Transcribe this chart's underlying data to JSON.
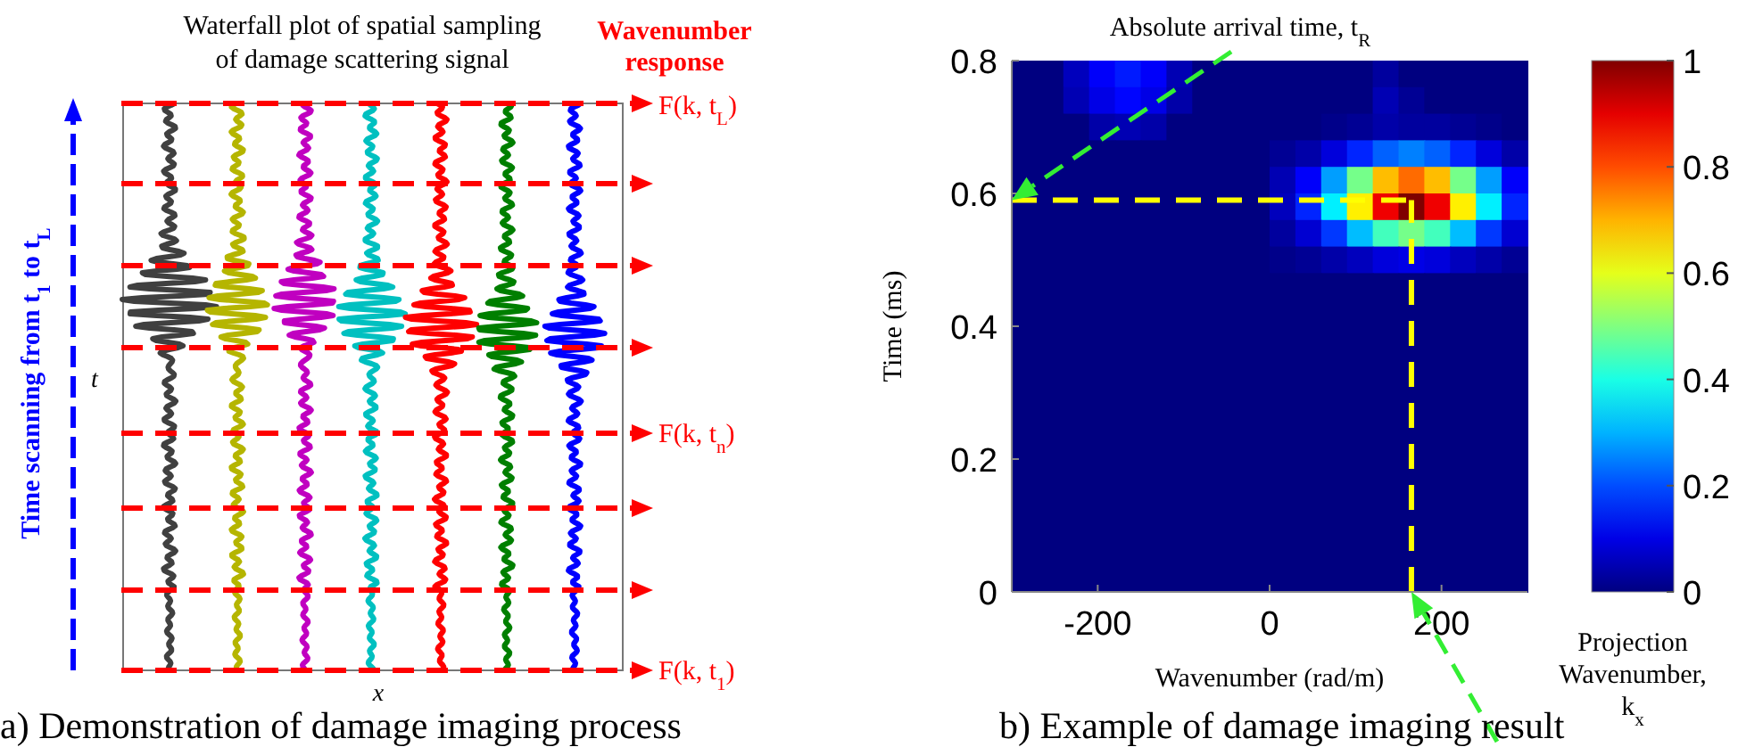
{
  "chart_data": [
    {
      "type": "other",
      "title": "Waterfall plot of spatial sampling of damage scattering signal",
      "xlabel": "x",
      "ylabel": "t",
      "annotations": [
        "Wavenumber response",
        "F(k, t$_{L}$)",
        "F(k, t$_{n}$)",
        "F(k, t$_{1}$)",
        "Time scanning from t$_{1}$ to t$_{L}$",
        "a) Demonstration of damage imaging process"
      ]
    },
    {
      "type": "heatmap",
      "xlabel": "Wavenumber (rad/m)",
      "ylabel": "Time (ms)",
      "x": [
        -285,
        -255,
        -225,
        -195,
        -165,
        -135,
        -105,
        -75,
        -45,
        -15,
        15,
        45,
        75,
        105,
        135,
        165,
        195,
        225,
        255,
        285
      ],
      "xlim": [
        -300,
        300
      ],
      "xticks": [
        -200,
        0,
        200
      ],
      "ylim": [
        0,
        0.8
      ],
      "yticks": [
        0,
        0.2,
        0.4,
        0.6,
        0.8
      ],
      "clim": [
        0,
        1
      ],
      "cticks": [
        0,
        0.2,
        0.4,
        0.6,
        0.8,
        1
      ],
      "cells": [
        [
          0,
          0,
          0.06,
          0.12,
          0.15,
          0.12,
          0.05,
          0,
          0,
          0,
          0,
          0,
          0,
          0,
          0.03,
          0,
          0,
          0,
          0,
          0
        ],
        [
          0,
          0,
          0.05,
          0.1,
          0.13,
          0.1,
          0.04,
          0,
          0,
          0,
          0,
          0,
          0,
          0,
          0.05,
          0.02,
          0,
          0,
          0,
          0
        ],
        [
          0,
          0,
          0,
          0.04,
          0.05,
          0.04,
          0,
          0,
          0,
          0,
          0,
          0,
          0.01,
          0.02,
          0.04,
          0.03,
          0.03,
          0.02,
          0.01,
          0
        ],
        [
          0,
          0,
          0,
          0,
          0,
          0,
          0,
          0,
          0,
          0,
          0.02,
          0.04,
          0.09,
          0.16,
          0.22,
          0.25,
          0.22,
          0.16,
          0.09,
          0.04
        ],
        [
          0,
          0,
          0,
          0,
          0,
          0,
          0,
          0,
          0,
          0,
          0.05,
          0.12,
          0.28,
          0.49,
          0.69,
          0.77,
          0.69,
          0.49,
          0.28,
          0.12
        ],
        [
          0,
          0,
          0,
          0,
          0,
          0,
          0,
          0,
          0,
          0,
          0.06,
          0.16,
          0.36,
          0.64,
          0.89,
          1,
          0.89,
          0.64,
          0.36,
          0.16
        ],
        [
          0,
          0,
          0,
          0,
          0,
          0,
          0,
          0,
          0,
          0,
          0.03,
          0.08,
          0.18,
          0.31,
          0.44,
          0.49,
          0.44,
          0.31,
          0.18,
          0.08
        ],
        [
          0,
          0,
          0,
          0,
          0,
          0,
          0,
          0,
          0,
          0,
          0.01,
          0.02,
          0.04,
          0.06,
          0.09,
          0.1,
          0.09,
          0.06,
          0.04,
          0.02
        ],
        [
          0,
          0,
          0,
          0,
          0,
          0,
          0,
          0,
          0,
          0,
          0,
          0,
          0,
          0,
          0,
          0,
          0,
          0,
          0,
          0
        ],
        [
          0,
          0,
          0,
          0,
          0,
          0,
          0,
          0,
          0,
          0,
          0,
          0,
          0,
          0,
          0,
          0,
          0,
          0,
          0,
          0
        ],
        [
          0,
          0,
          0,
          0,
          0,
          0,
          0,
          0,
          0,
          0,
          0,
          0,
          0,
          0,
          0,
          0,
          0,
          0,
          0,
          0
        ],
        [
          0,
          0,
          0,
          0,
          0,
          0,
          0,
          0,
          0,
          0,
          0,
          0,
          0,
          0,
          0,
          0,
          0,
          0,
          0,
          0
        ],
        [
          0,
          0,
          0,
          0,
          0,
          0,
          0,
          0,
          0,
          0,
          0,
          0,
          0,
          0,
          0,
          0,
          0,
          0,
          0,
          0
        ],
        [
          0,
          0,
          0,
          0,
          0,
          0,
          0,
          0,
          0,
          0,
          0,
          0,
          0,
          0,
          0,
          0,
          0,
          0,
          0,
          0
        ],
        [
          0,
          0,
          0,
          0,
          0,
          0,
          0,
          0,
          0,
          0,
          0,
          0,
          0,
          0,
          0,
          0,
          0,
          0,
          0,
          0
        ],
        [
          0,
          0,
          0,
          0,
          0,
          0,
          0,
          0,
          0,
          0,
          0,
          0,
          0,
          0,
          0,
          0,
          0,
          0,
          0,
          0
        ],
        [
          0,
          0,
          0,
          0,
          0,
          0,
          0,
          0,
          0,
          0,
          0,
          0,
          0,
          0,
          0,
          0,
          0,
          0,
          0,
          0
        ],
        [
          0,
          0,
          0,
          0,
          0,
          0,
          0,
          0,
          0,
          0,
          0,
          0,
          0,
          0,
          0,
          0,
          0,
          0,
          0,
          0
        ],
        [
          0,
          0,
          0,
          0,
          0,
          0,
          0,
          0,
          0,
          0,
          0,
          0,
          0,
          0,
          0,
          0,
          0,
          0,
          0,
          0
        ],
        [
          0,
          0,
          0,
          0,
          0,
          0,
          0,
          0,
          0,
          0,
          0,
          0,
          0,
          0,
          0,
          0,
          0,
          0,
          0,
          0
        ]
      ],
      "ref_lines": [
        {
          "axis": "y",
          "value": 0.59,
          "color": "#ffff00",
          "line_style": "dashed"
        },
        {
          "axis": "x",
          "value": 165,
          "color": "#ffff00",
          "line_style": "dashed"
        }
      ],
      "annotations": [
        "Absolute arrival time, t$_{R}$",
        "Projection Wavenumber, k$_{x}$",
        "b) Example of damage imaging result"
      ]
    }
  ]
}
